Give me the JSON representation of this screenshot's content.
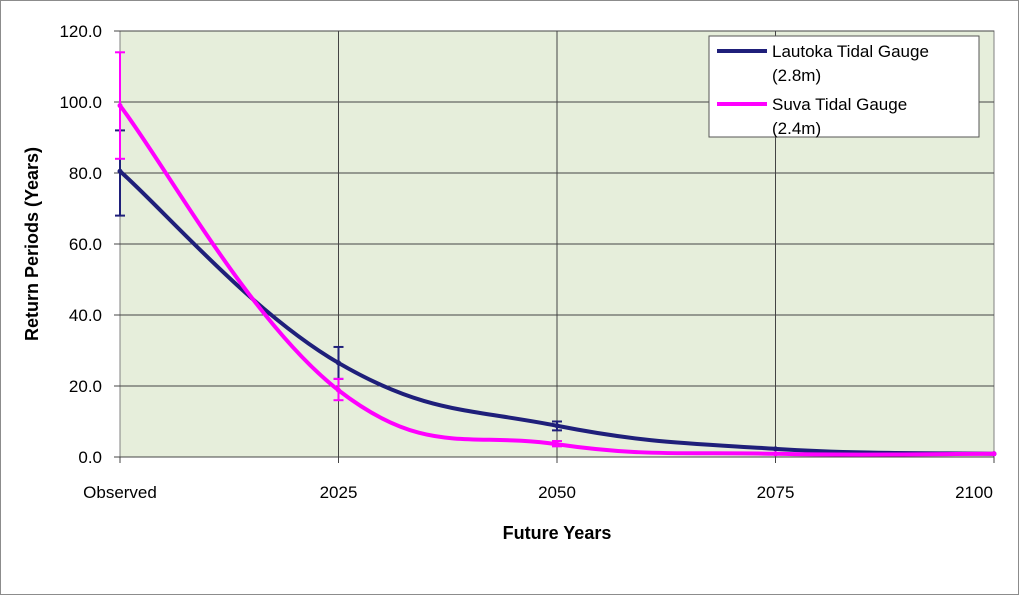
{
  "chart_data": {
    "type": "line",
    "title": "",
    "xlabel": "Future Years",
    "ylabel": "Return Periods (Years)",
    "categories": [
      "Observed",
      "2025",
      "2050",
      "2075",
      "2100"
    ],
    "ylim": [
      0,
      120
    ],
    "yticks": [
      "0.0",
      "20.0",
      "40.0",
      "60.0",
      "80.0",
      "100.0",
      "120.0"
    ],
    "grid": true,
    "plot_background": "#e6eedb",
    "legend_position": "top-right",
    "series": [
      {
        "name_lines": [
          "Lautoka Tidal Gauge",
          "(2.8m)"
        ],
        "color": "#1f1f7a",
        "values": [
          80.5,
          26.5,
          8.8,
          2.3,
          0.9
        ],
        "error_bars": [
          [
            68.0,
            92.0
          ],
          [
            22.0,
            31.0
          ],
          [
            7.5,
            10.0
          ],
          null,
          null
        ]
      },
      {
        "name_lines": [
          "Suva Tidal Gauge",
          "(2.4m)"
        ],
        "color": "#ff00ff",
        "values": [
          99.0,
          18.8,
          3.6,
          0.9,
          0.9
        ],
        "error_bars": [
          [
            84.0,
            114.0
          ],
          [
            16.0,
            22.0
          ],
          [
            3.0,
            4.5
          ],
          null,
          null
        ]
      }
    ]
  }
}
